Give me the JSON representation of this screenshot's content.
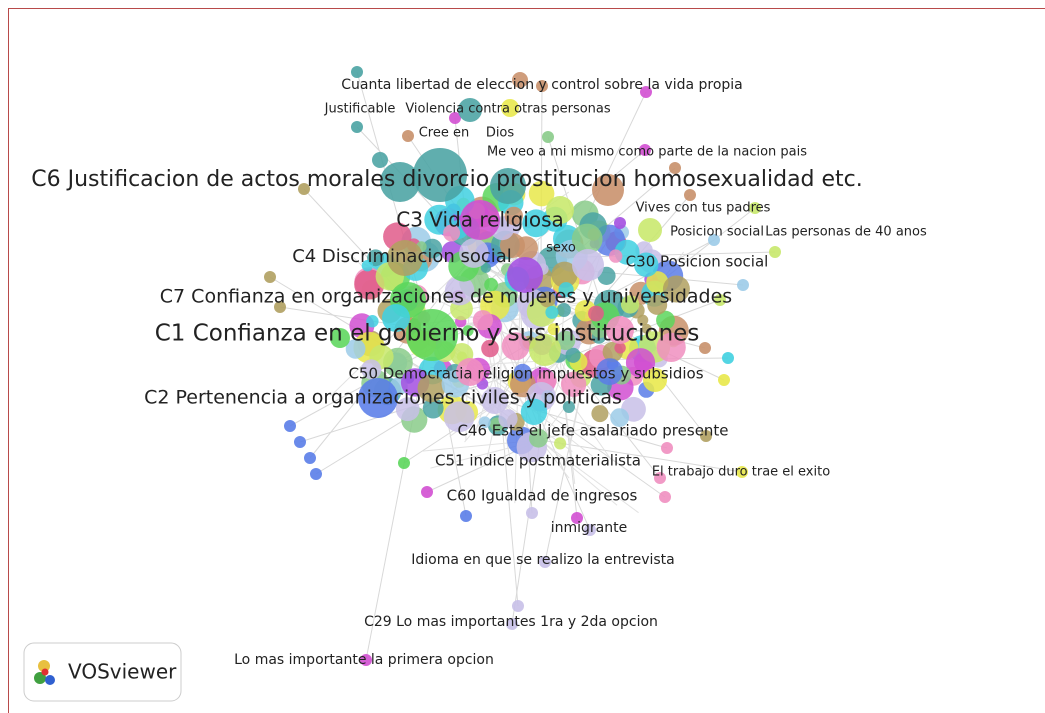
{
  "labels": [
    "Cuanta libertad de eleccion y control sobre la vida propia",
    "Justificable",
    "Violencia contra otras personas",
    "Cree en",
    "Dios",
    "Me veo a mi mismo como parte de la nacion pais",
    "C6 Justificacion de actos morales divorcio prostitucion homosexualidad etc.",
    "C3 Vida religiosa",
    "Vives con tus padres",
    "Posicion social",
    "Las personas de 40 anos",
    "C4 Discriminacion social",
    "sexo",
    "C30 Posicion social",
    "C7 Confianza en organizaciones de mujeres y universidades",
    "C1 Confianza en el gobierno y sus instituciones",
    "C50 Democracia religion impuestos y subsidios",
    "C2 Pertenencia a organizaciones civiles y politicas",
    "C46 Esta el jefe asalariado presente",
    "C51 indice postmaterialista",
    "El trabajo duro trae el exito",
    "C60 Igualdad de ingresos",
    "inmigrante",
    "Idioma en que se realizo la entrevista",
    "C29 Lo mas importantes 1ra y 2da opcion",
    "Lo mas importante la primera opcion"
  ],
  "logo": "VOSviewer"
}
